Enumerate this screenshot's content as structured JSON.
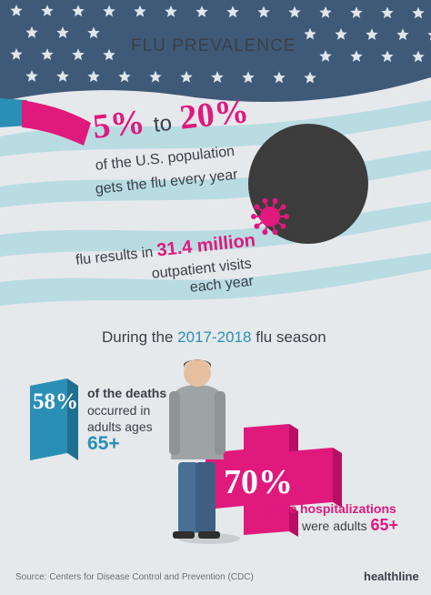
{
  "colors": {
    "background": "#e6e9ec",
    "flag_blue": "#3f5a78",
    "flag_stripe": "#b9dce3",
    "magenta": "#e0197d",
    "teal": "#2a8fb4",
    "dark_text": "#3a3f47",
    "virus_ball": "#3c3c3c"
  },
  "header": {
    "title": "FLU PREVALENCE"
  },
  "stat_population": {
    "low": "5%",
    "to": "to",
    "high": "20%",
    "line1": "of the U.S. population",
    "line2": "gets the flu every year"
  },
  "stat_outpatient": {
    "prefix": "flu results in",
    "value": "31.4 million",
    "line2": "outpatient visits",
    "line3": "each year"
  },
  "season": {
    "prefix": "During the",
    "years": "2017-2018",
    "suffix": "flu season"
  },
  "stat_deaths": {
    "percent": "58%",
    "line1": "of the deaths",
    "line2": "occurred in",
    "line3": "adults ages",
    "age": "65+"
  },
  "stat_hospital": {
    "percent": "70%",
    "line1": "of the hospitalizations",
    "line2": "were adults",
    "age": "65+"
  },
  "footer": {
    "source": "Source: Centers for Disease Control and Prevention (CDC)",
    "brand": "healthline"
  },
  "icons": [
    "star-icon",
    "virus-icon",
    "red-cross-icon",
    "person-illustration"
  ]
}
